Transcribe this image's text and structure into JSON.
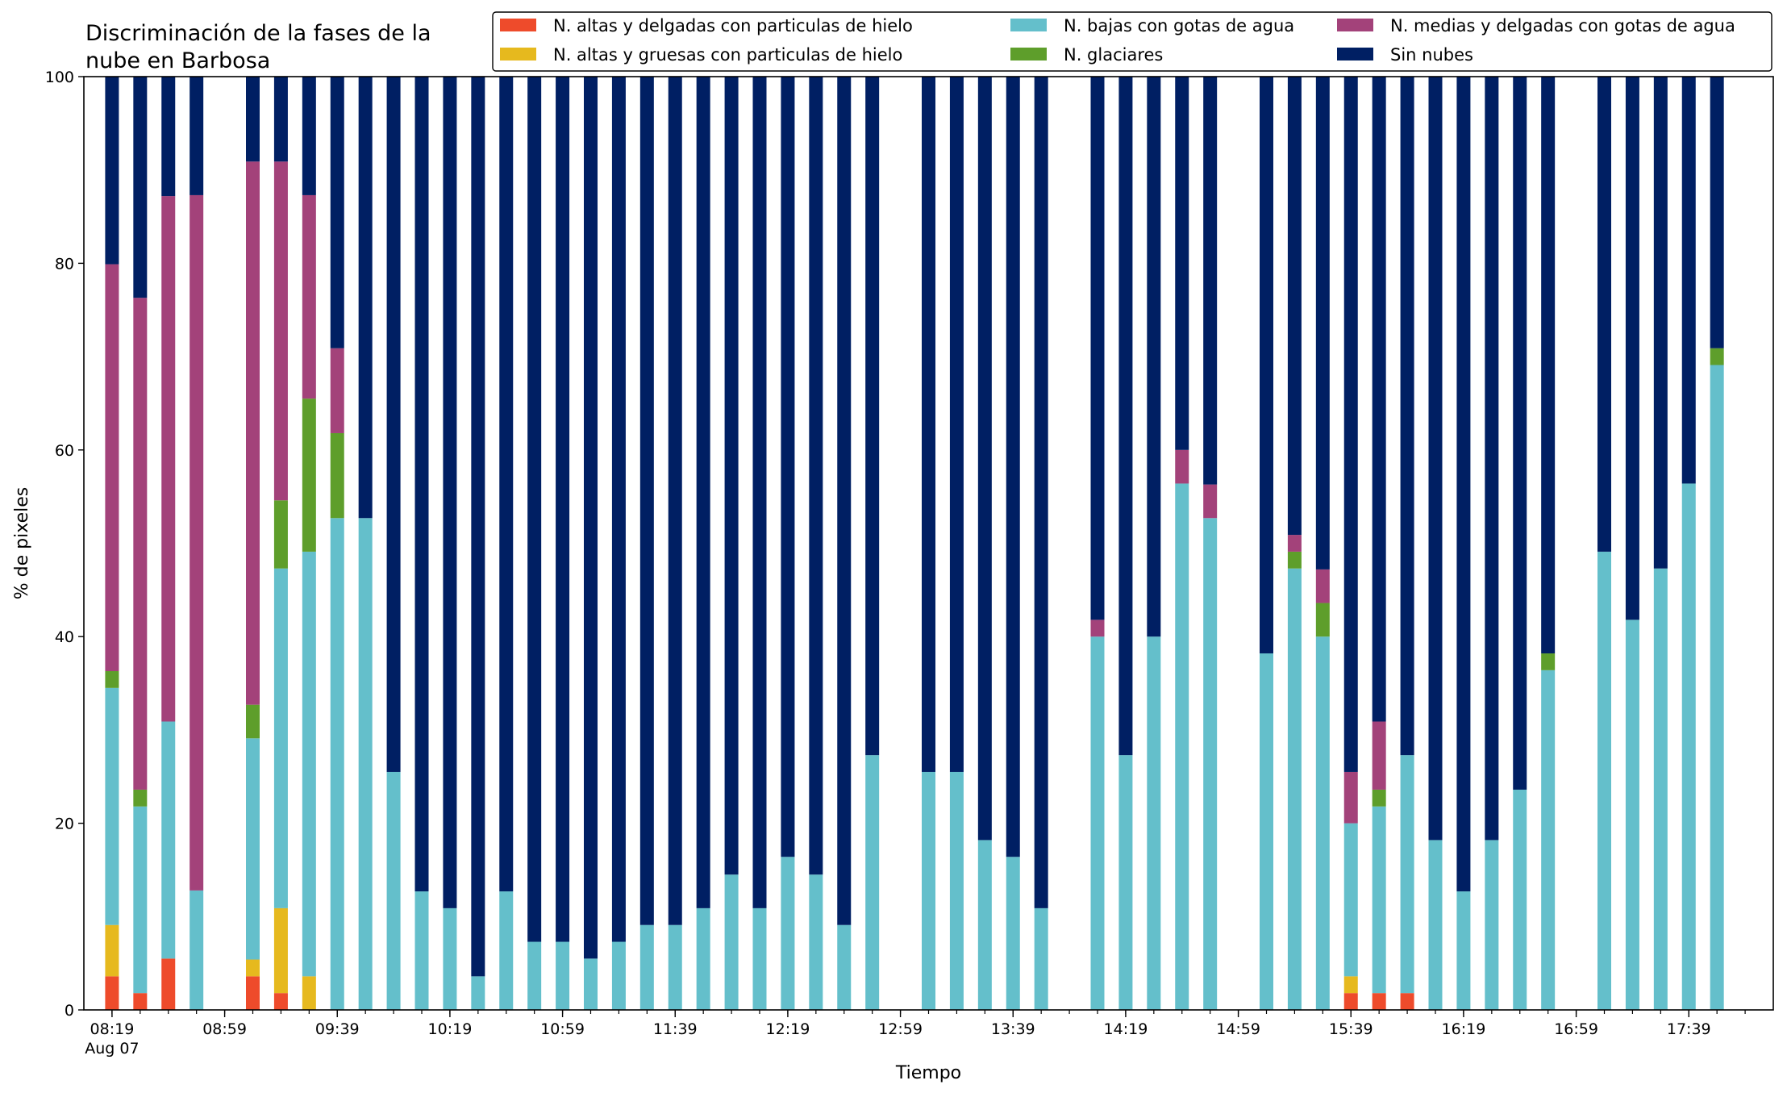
{
  "chart_data": {
    "type": "bar",
    "stacked": true,
    "title_lines": [
      "Discriminación de la fases de la",
      "nube en Barbosa"
    ],
    "xlabel": "Tiempo",
    "ylabel": "% de pixeles",
    "ylim": [
      0,
      100
    ],
    "yticks": [
      0,
      20,
      40,
      60,
      80,
      100
    ],
    "x_start": "08:19",
    "x_end": "17:59",
    "x_interval_minutes": 10,
    "xticks": [
      {
        "time": "08:19",
        "label": "08:19",
        "sublabel": "Aug 07"
      },
      {
        "time": "08:59",
        "label": "08:59"
      },
      {
        "time": "09:39",
        "label": "09:39"
      },
      {
        "time": "10:19",
        "label": "10:19"
      },
      {
        "time": "10:59",
        "label": "10:59"
      },
      {
        "time": "11:39",
        "label": "11:39"
      },
      {
        "time": "12:19",
        "label": "12:19"
      },
      {
        "time": "12:59",
        "label": "12:59"
      },
      {
        "time": "13:39",
        "label": "13:39"
      },
      {
        "time": "14:19",
        "label": "14:19"
      },
      {
        "time": "14:59",
        "label": "14:59"
      },
      {
        "time": "15:39",
        "label": "15:39"
      },
      {
        "time": "16:19",
        "label": "16:19"
      },
      {
        "time": "16:59",
        "label": "16:59"
      },
      {
        "time": "17:39",
        "label": "17:39"
      }
    ],
    "grid": false,
    "legend_position": "top-right",
    "legend_order": [
      0,
      1,
      3,
      4,
      2,
      5
    ],
    "series": [
      {
        "name": "N. altas y delgadas con particulas de hielo",
        "color": "#ee4b2b"
      },
      {
        "name": "N. altas y gruesas con particulas de hielo",
        "color": "#e6b91e"
      },
      {
        "name": "N. medias y delgadas con gotas de agua",
        "color": "#a3427a"
      },
      {
        "name": "N. bajas con gotas de agua",
        "color": "#64bfcb"
      },
      {
        "name": "N. glaciares",
        "color": "#5e9e2b"
      },
      {
        "name": "Sin nubes",
        "color": "#001f63"
      }
    ],
    "stack_order": [
      0,
      1,
      3,
      4,
      2,
      5
    ],
    "bars": [
      {
        "time": "08:19",
        "values": [
          3.6,
          5.5,
          43.6,
          25.4,
          1.8,
          20.1
        ]
      },
      {
        "time": "08:29",
        "values": [
          1.8,
          0,
          52.7,
          20.0,
          1.8,
          23.7
        ]
      },
      {
        "time": "08:39",
        "values": [
          5.5,
          0,
          56.3,
          25.4,
          0,
          12.8
        ]
      },
      {
        "time": "08:49",
        "values": [
          0,
          0,
          74.5,
          12.8,
          0,
          12.7
        ]
      },
      {
        "time": "09:09",
        "values": [
          3.6,
          1.8,
          58.2,
          23.7,
          3.6,
          9.1
        ]
      },
      {
        "time": "09:19",
        "values": [
          1.8,
          9.1,
          36.3,
          36.4,
          7.3,
          9.1
        ]
      },
      {
        "time": "09:29",
        "values": [
          0,
          3.6,
          21.8,
          45.5,
          16.4,
          12.7
        ]
      },
      {
        "time": "09:39",
        "values": [
          0,
          0,
          9.1,
          52.7,
          9.1,
          29.1
        ]
      },
      {
        "time": "09:49",
        "values": [
          0,
          0,
          0,
          52.7,
          0,
          47.3
        ]
      },
      {
        "time": "09:59",
        "values": [
          0,
          0,
          0,
          25.5,
          0,
          74.5
        ]
      },
      {
        "time": "10:09",
        "values": [
          0,
          0,
          0,
          12.7,
          0,
          87.3
        ]
      },
      {
        "time": "10:19",
        "values": [
          0,
          0,
          0,
          10.9,
          0,
          89.1
        ]
      },
      {
        "time": "10:29",
        "values": [
          0,
          0,
          0,
          3.6,
          0,
          96.4
        ]
      },
      {
        "time": "10:39",
        "values": [
          0,
          0,
          0,
          12.7,
          0,
          87.3
        ]
      },
      {
        "time": "10:49",
        "values": [
          0,
          0,
          0,
          7.3,
          0,
          92.7
        ]
      },
      {
        "time": "10:59",
        "values": [
          0,
          0,
          0,
          7.3,
          0,
          92.7
        ]
      },
      {
        "time": "11:09",
        "values": [
          0,
          0,
          0,
          5.5,
          0,
          94.5
        ]
      },
      {
        "time": "11:19",
        "values": [
          0,
          0,
          0,
          7.3,
          0,
          92.7
        ]
      },
      {
        "time": "11:29",
        "values": [
          0,
          0,
          0,
          9.1,
          0,
          90.9
        ]
      },
      {
        "time": "11:39",
        "values": [
          0,
          0,
          0,
          9.1,
          0,
          90.9
        ]
      },
      {
        "time": "11:49",
        "values": [
          0,
          0,
          0,
          10.9,
          0,
          89.1
        ]
      },
      {
        "time": "11:59",
        "values": [
          0,
          0,
          0,
          14.5,
          0,
          85.5
        ]
      },
      {
        "time": "12:09",
        "values": [
          0,
          0,
          0,
          10.9,
          0,
          89.1
        ]
      },
      {
        "time": "12:19",
        "values": [
          0,
          0,
          0,
          16.4,
          0,
          83.6
        ]
      },
      {
        "time": "12:29",
        "values": [
          0,
          0,
          0,
          14.5,
          0,
          85.5
        ]
      },
      {
        "time": "12:39",
        "values": [
          0,
          0,
          0,
          9.1,
          0,
          90.9
        ]
      },
      {
        "time": "12:49",
        "values": [
          0,
          0,
          0,
          27.3,
          0,
          72.7
        ]
      },
      {
        "time": "13:09",
        "values": [
          0,
          0,
          0,
          25.5,
          0,
          74.5
        ]
      },
      {
        "time": "13:19",
        "values": [
          0,
          0,
          0,
          25.5,
          0,
          74.5
        ]
      },
      {
        "time": "13:29",
        "values": [
          0,
          0,
          0,
          18.2,
          0,
          81.8
        ]
      },
      {
        "time": "13:39",
        "values": [
          0,
          0,
          0,
          16.4,
          0,
          83.6
        ]
      },
      {
        "time": "13:49",
        "values": [
          0,
          0,
          0,
          10.9,
          0,
          89.1
        ]
      },
      {
        "time": "14:09",
        "values": [
          0,
          0,
          1.8,
          40.0,
          0,
          58.2
        ]
      },
      {
        "time": "14:19",
        "values": [
          0,
          0,
          0,
          27.3,
          0,
          72.7
        ]
      },
      {
        "time": "14:29",
        "values": [
          0,
          0,
          0,
          40.0,
          0,
          60.0
        ]
      },
      {
        "time": "14:39",
        "values": [
          0,
          0,
          3.6,
          56.4,
          0,
          40.0
        ]
      },
      {
        "time": "14:49",
        "values": [
          0,
          0,
          3.6,
          52.7,
          0,
          43.7
        ]
      },
      {
        "time": "15:09",
        "values": [
          0,
          0,
          0,
          38.2,
          0,
          61.8
        ]
      },
      {
        "time": "15:19",
        "values": [
          0,
          0,
          1.8,
          47.3,
          1.8,
          49.1
        ]
      },
      {
        "time": "15:29",
        "values": [
          0,
          0,
          3.6,
          40.0,
          3.6,
          52.8
        ]
      },
      {
        "time": "15:39",
        "values": [
          1.8,
          1.8,
          5.5,
          16.4,
          0,
          74.5
        ]
      },
      {
        "time": "15:49",
        "values": [
          1.8,
          0,
          7.3,
          20.0,
          1.8,
          69.1
        ]
      },
      {
        "time": "15:59",
        "values": [
          1.8,
          0,
          0,
          25.5,
          0,
          72.7
        ]
      },
      {
        "time": "16:09",
        "values": [
          0,
          0,
          0,
          18.2,
          0,
          81.8
        ]
      },
      {
        "time": "16:19",
        "values": [
          0,
          0,
          0,
          12.7,
          0,
          87.3
        ]
      },
      {
        "time": "16:29",
        "values": [
          0,
          0,
          0,
          18.2,
          0,
          81.8
        ]
      },
      {
        "time": "16:39",
        "values": [
          0,
          0,
          0,
          23.6,
          0,
          76.4
        ]
      },
      {
        "time": "16:49",
        "values": [
          0,
          0,
          0,
          36.4,
          1.8,
          61.8
        ]
      },
      {
        "time": "17:09",
        "values": [
          0,
          0,
          0,
          49.1,
          0,
          50.9
        ]
      },
      {
        "time": "17:19",
        "values": [
          0,
          0,
          0,
          41.8,
          0,
          58.2
        ]
      },
      {
        "time": "17:29",
        "values": [
          0,
          0,
          0,
          47.3,
          0,
          52.7
        ]
      },
      {
        "time": "17:39",
        "values": [
          0,
          0,
          0,
          56.4,
          0,
          43.6
        ]
      },
      {
        "time": "17:49",
        "values": [
          0,
          0,
          0,
          69.1,
          1.8,
          29.1
        ]
      }
    ]
  }
}
